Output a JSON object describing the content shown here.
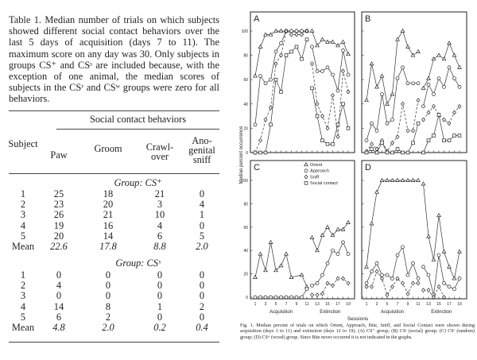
{
  "table": {
    "caption": "Table 1. Median number of trials on which subjects showed different social contact behaviors over the last 5 days of acquisition (days 7 to 11). The maximum score on any day was 30. Only subjects in groups CS⁺ and CSˢ are included because, with the exception of one animal, the median scores of subjects in the CSʳ and CSʷ groups were zero for all behaviors.",
    "spanner": "Social contact behaviors",
    "headers": [
      "Subject",
      "Paw",
      "Groom",
      "Crawl-\nover",
      "Ano-\ngenital\nsniff"
    ],
    "groups": [
      {
        "label": "Group: CS⁺",
        "rows": [
          [
            "1",
            "25",
            "18",
            "21",
            "0"
          ],
          [
            "2",
            "23",
            "20",
            "3",
            "4"
          ],
          [
            "3",
            "26",
            "21",
            "10",
            "1"
          ],
          [
            "4",
            "19",
            "16",
            "4",
            "0"
          ],
          [
            "5",
            "20",
            "14",
            "6",
            "5"
          ]
        ],
        "mean": [
          "Mean",
          "22.6",
          "17.8",
          "8.8",
          "2.0"
        ]
      },
      {
        "label": "Group: CSˢ",
        "rows": [
          [
            "1",
            "0",
            "0",
            "0",
            "0"
          ],
          [
            "2",
            "4",
            "0",
            "0",
            "0"
          ],
          [
            "3",
            "0",
            "0",
            "0",
            "0"
          ],
          [
            "4",
            "14",
            "8",
            "1",
            "2"
          ],
          [
            "5",
            "6",
            "2",
            "0",
            "0"
          ]
        ],
        "mean": [
          "Mean",
          "4.8",
          "2.0",
          "0.2",
          "0.4"
        ]
      }
    ]
  },
  "figure": {
    "caption": "Fig. 1. Median percent of trials on which Orient, Approach, Bite, Sniff, and Social Contact were shown during acquisition (days 1 to 11) and extinction (days 12 to 19). (A) CS⁺ group; (B) CSˢ (social) group; (C) CSʳ (random) group; (D) CSʷ (wood) group. Since Bite never occurred it is not indicated in the graphs."
  },
  "chart_data": {
    "type": "line",
    "ylabel": "Median percent occurrence",
    "xlabel": "Sessions",
    "phase_labels": [
      "Acquisition",
      "Extinction"
    ],
    "ylim": [
      0,
      115
    ],
    "yticks": [
      0,
      20,
      40,
      60,
      80,
      100
    ],
    "xticks": [
      1,
      3,
      5,
      7,
      9,
      11,
      13,
      15,
      17,
      19
    ],
    "legend": [
      "Orient",
      "Approach",
      "Sniff",
      "Social contact"
    ],
    "panels": [
      {
        "label": "A",
        "series": {
          "Orient": [
            63,
            87,
            97,
            97,
            100,
            100,
            100,
            100,
            100,
            100,
            100,
            100,
            88,
            93,
            91,
            91,
            88,
            91,
            81
          ],
          "Approach": [
            23,
            63,
            57,
            60,
            83,
            90,
            100,
            100,
            100,
            100,
            100,
            87,
            67,
            67,
            70,
            64,
            51,
            84,
            64
          ],
          "Sniff": [
            0,
            10,
            27,
            37,
            73,
            80,
            100,
            97,
            97,
            97,
            100,
            73,
            40,
            30,
            20,
            47,
            13,
            67,
            50
          ],
          "Social contact": [
            0,
            0,
            0,
            23,
            60,
            50,
            80,
            83,
            87,
            77,
            93,
            53,
            30,
            10,
            7,
            7,
            23,
            40,
            20
          ]
        }
      },
      {
        "label": "B",
        "series": {
          "Orient": [
            43,
            73,
            54,
            63,
            40,
            48,
            93,
            100,
            87,
            80,
            83,
            53,
            61,
            77,
            80,
            77,
            90,
            80,
            70
          ],
          "Approach": [
            10,
            24,
            18,
            48,
            24,
            27,
            61,
            70,
            57,
            57,
            57,
            38,
            56,
            48,
            61,
            54,
            70,
            61,
            54
          ],
          "Sniff": [
            1,
            7,
            3,
            10,
            1,
            8,
            13,
            40,
            18,
            18,
            43,
            27,
            33,
            38,
            31,
            27,
            24,
            33,
            38
          ],
          "Social contact": [
            0,
            3,
            0,
            8,
            0,
            0,
            3,
            0,
            0,
            8,
            24,
            0,
            10,
            14,
            31,
            10,
            10,
            14,
            14
          ]
        }
      },
      {
        "label": "C",
        "series": {
          "Orient": [
            17,
            37,
            23,
            47,
            23,
            27,
            37,
            17,
            null,
            19,
            9,
            51,
            40,
            53,
            60,
            53,
            58,
            58,
            64
          ],
          "Approach": [
            0,
            0,
            0,
            0,
            0,
            0,
            0,
            0,
            0,
            0,
            7,
            10,
            12,
            19,
            29,
            40,
            37,
            47,
            37
          ],
          "Sniff": [
            null,
            null,
            null,
            null,
            null,
            null,
            null,
            null,
            null,
            null,
            null,
            2,
            2,
            3,
            12,
            10,
            16,
            16,
            12
          ],
          "Social contact": []
        }
      },
      {
        "label": "D",
        "series": {
          "Orient": [
            26,
            63,
            90,
            100,
            100,
            100,
            100,
            100,
            100,
            100,
            100,
            97,
            52,
            32,
            70,
            39,
            26,
            16,
            39
          ],
          "Approach": [
            12,
            22,
            29,
            19,
            19,
            16,
            36,
            43,
            19,
            29,
            16,
            26,
            19,
            2,
            36,
            12,
            9,
            7,
            16
          ],
          "Sniff": [
            9,
            9,
            22,
            16,
            2,
            9,
            16,
            12,
            3,
            12,
            12,
            6,
            6,
            0,
            9,
            0,
            null,
            null,
            null
          ],
          "Social contact": []
        }
      }
    ]
  }
}
